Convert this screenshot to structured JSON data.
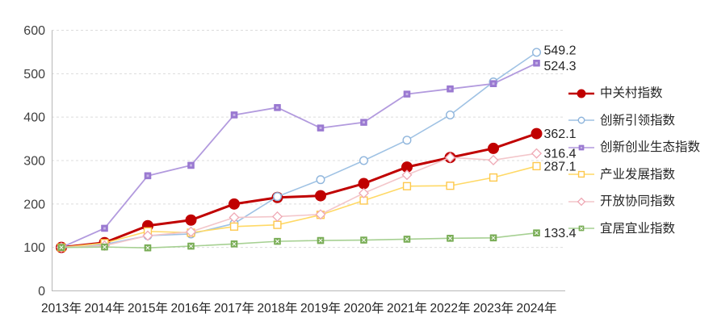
{
  "chart_data": {
    "type": "line",
    "title": "",
    "x": [
      "2013年",
      "2014年",
      "2015年",
      "2016年",
      "2017年",
      "2018年",
      "2019年",
      "2020年",
      "2021年",
      "2022年",
      "2023年",
      "2024年"
    ],
    "ylim": [
      0,
      600
    ],
    "y_ticks": [
      0,
      100,
      200,
      300,
      400,
      500,
      600
    ],
    "grid": "horizontal-dashed",
    "legend_position": "right",
    "series": [
      {
        "name": "中关村指数",
        "values": [
          100,
          111,
          150,
          163,
          200,
          215,
          219,
          247,
          285,
          307,
          328,
          362.1
        ],
        "end_label": "362.1",
        "color": "#c00000",
        "marker": "circle-filled",
        "marker_color": "#c00000",
        "line_width": 3
      },
      {
        "name": "创新引领指数",
        "values": [
          100,
          107,
          127,
          131,
          155,
          217,
          256,
          300,
          347,
          405,
          481,
          549.2
        ],
        "end_label": "549.2",
        "color": "#9fc2e4",
        "marker": "circle-open",
        "marker_color": "#8fb5dc",
        "line_width": 1.6
      },
      {
        "name": "创新创业生态指数",
        "values": [
          100,
          144,
          265,
          289,
          405,
          422,
          375,
          388,
          453,
          465,
          477,
          524.3
        ],
        "end_label": "524.3",
        "color": "#b29ade",
        "marker": "square-filled",
        "marker_color": "#9a79d1",
        "line_width": 1.8
      },
      {
        "name": "产业发展指数",
        "values": [
          100,
          110,
          137,
          134,
          148,
          152,
          175,
          208,
          241,
          242,
          261,
          287.1
        ],
        "end_label": "287.1",
        "color": "#ffd966",
        "marker": "square-open",
        "marker_color": "#fec84d",
        "line_width": 1.6
      },
      {
        "name": "开放协同指数",
        "values": [
          100,
          104,
          127,
          136,
          169,
          171,
          176,
          225,
          267,
          307,
          301,
          316.4
        ],
        "end_label": "316.4",
        "color": "#f3c6ca",
        "marker": "diamond-open",
        "marker_color": "#efa9b5",
        "line_width": 1.6
      },
      {
        "name": "宜居宜业指数",
        "values": [
          100,
          101,
          99,
          103,
          108,
          114,
          116,
          117,
          119,
          121,
          122,
          133.4
        ],
        "end_label": "133.4",
        "color": "#a6d092",
        "marker": "square-x",
        "marker_color": "#79ad56",
        "line_width": 1.6
      }
    ]
  }
}
